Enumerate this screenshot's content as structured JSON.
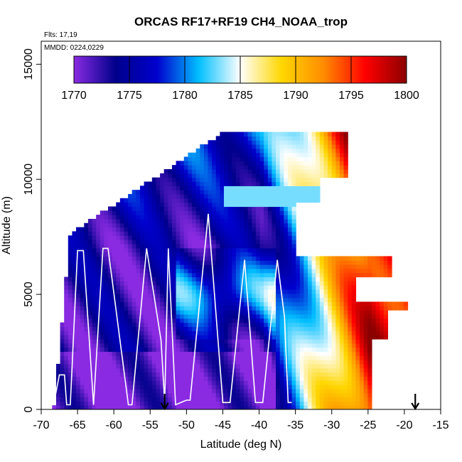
{
  "chart_data": {
    "type": "heatmap",
    "title": "ORCAS RF17+RF19 CH4_NOAA_trop",
    "annotations": {
      "flights": "Flts: 17,19",
      "dates": "MMDD: 0224,0229"
    },
    "xlabel": "Latitude (deg N)",
    "ylabel": "Altitude (m)",
    "xlim": [
      -70,
      -15
    ],
    "ylim": [
      0,
      16000
    ],
    "x_ticks": [
      -70,
      -65,
      -60,
      -55,
      -50,
      -45,
      -40,
      -35,
      -30,
      -25,
      -20,
      -15
    ],
    "y_ticks": [
      0,
      5000,
      10000,
      15000
    ],
    "colorbar": {
      "range": [
        1770,
        1800
      ],
      "ticks": [
        1770,
        1775,
        1780,
        1785,
        1790,
        1795,
        1800
      ],
      "colors": [
        "#8a2be2",
        "#00008b",
        "#0000cd",
        "#00bfff",
        "#ffffff",
        "#ffd700",
        "#ff8c00",
        "#ff0000",
        "#8b0000"
      ]
    },
    "data_extent": {
      "lat_range": [
        -68.5,
        -20
      ],
      "alt_range": [
        0,
        12000
      ]
    },
    "flight_track_color": "#ffffff",
    "markers": [
      {
        "label": "arrow",
        "lat": -53,
        "alt": 0
      },
      {
        "label": "arrow",
        "lat": -18.5,
        "alt": 0
      }
    ]
  }
}
